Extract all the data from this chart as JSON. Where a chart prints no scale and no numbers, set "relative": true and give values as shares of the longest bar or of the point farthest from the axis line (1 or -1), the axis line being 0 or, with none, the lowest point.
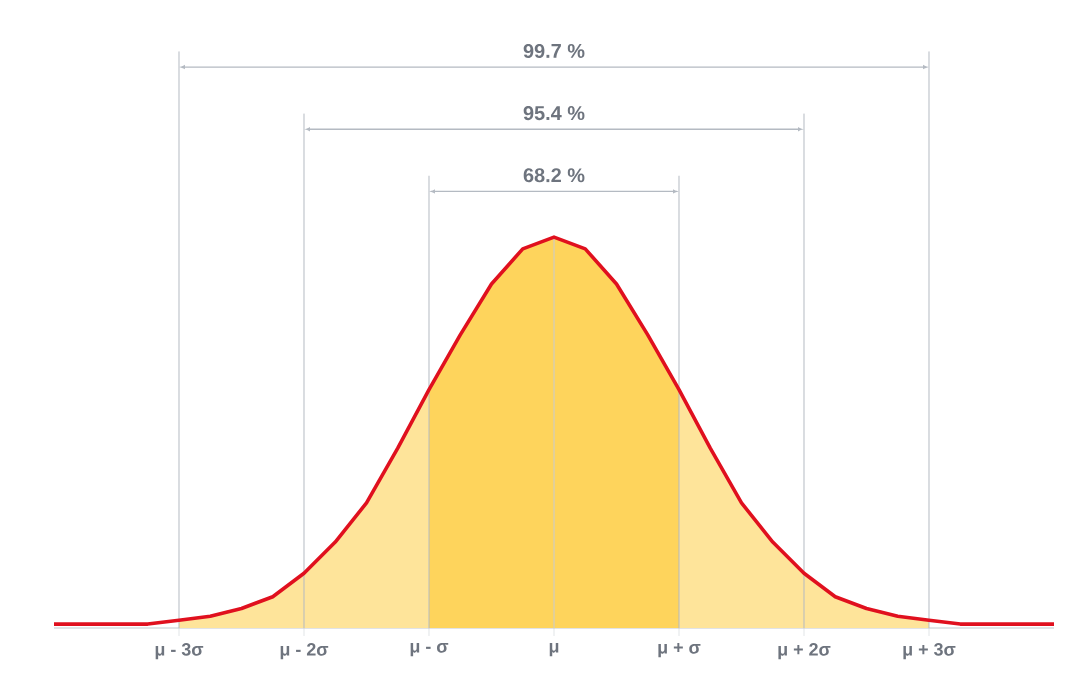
{
  "chart_data": {
    "type": "line",
    "relative": true,
    "xlim": [
      -4,
      4
    ],
    "xticks": [
      {
        "value": -3,
        "label": "μ - 3σ"
      },
      {
        "value": -2,
        "label": "μ - 2σ"
      },
      {
        "value": -1,
        "label": "μ - σ"
      },
      {
        "value": 0,
        "label": "μ"
      },
      {
        "value": 1,
        "label": "μ + σ"
      },
      {
        "value": 2,
        "label": "μ + 2σ"
      },
      {
        "value": 3,
        "label": "μ + 3σ"
      }
    ],
    "series": [
      {
        "type": "line",
        "color": "#e0101e",
        "x": [
          -4,
          -3.75,
          -3.5,
          -3.25,
          -3,
          -2.75,
          -2.5,
          -2.25,
          -2,
          -1.75,
          -1.5,
          -1.25,
          -1,
          -0.75,
          -0.5,
          -0.25,
          0,
          0.25,
          0.5,
          0.75,
          1,
          1.25,
          1.5,
          1.75,
          2,
          2.25,
          2.5,
          2.75,
          3,
          3.25,
          3.5,
          3.75,
          4
        ],
        "values": [
          0.01,
          0.01,
          0.01,
          0.01,
          0.02,
          0.03,
          0.05,
          0.08,
          0.14,
          0.22,
          0.32,
          0.46,
          0.61,
          0.75,
          0.88,
          0.97,
          1,
          0.97,
          0.88,
          0.75,
          0.61,
          0.46,
          0.32,
          0.22,
          0.14,
          0.08,
          0.05,
          0.03,
          0.02,
          0.01,
          0.01,
          0.01,
          0.01
        ]
      },
      {
        "type": "area",
        "color": "#fee49a",
        "x": [
          -3,
          -2.75,
          -2.5,
          -2.25,
          -2,
          -1.75,
          -1.5,
          -1.25,
          -1,
          -0.75,
          -0.5,
          -0.25,
          0,
          0.25,
          0.5,
          0.75,
          1,
          1.25,
          1.5,
          1.75,
          2,
          2.25,
          2.5,
          2.75,
          3
        ],
        "values": [
          0.02,
          0.03,
          0.05,
          0.08,
          0.14,
          0.22,
          0.32,
          0.46,
          0.61,
          null,
          null,
          null,
          null,
          null,
          null,
          null,
          0.61,
          0.46,
          0.32,
          0.22,
          0.14,
          0.08,
          0.05,
          0.03,
          0.02
        ]
      },
      {
        "type": "area",
        "color": "#fed45c",
        "x": [
          -1,
          -0.75,
          -0.5,
          -0.25,
          0,
          0.25,
          0.5,
          0.75,
          1
        ],
        "values": [
          0.61,
          0.75,
          0.88,
          0.97,
          1,
          0.97,
          0.88,
          0.75,
          0.61
        ]
      }
    ],
    "ref_lines": [
      {
        "axis": "x",
        "value": -1,
        "color": "#b4bac2"
      },
      {
        "axis": "x",
        "value": 1,
        "color": "#b4bac2"
      },
      {
        "axis": "x",
        "value": -2,
        "color": "#b4bac2"
      },
      {
        "axis": "x",
        "value": 2,
        "color": "#b4bac2"
      },
      {
        "axis": "x",
        "value": -3,
        "color": "#b4bac2"
      },
      {
        "axis": "x",
        "value": 3,
        "color": "#b4bac2"
      },
      {
        "axis": "x",
        "value": 0,
        "color": "#c8ccd2"
      }
    ],
    "annotations": [
      "68.2 %",
      "95.4 %",
      "99.7 %"
    ],
    "marker": "none",
    "line_style": "solid",
    "grid": false
  }
}
